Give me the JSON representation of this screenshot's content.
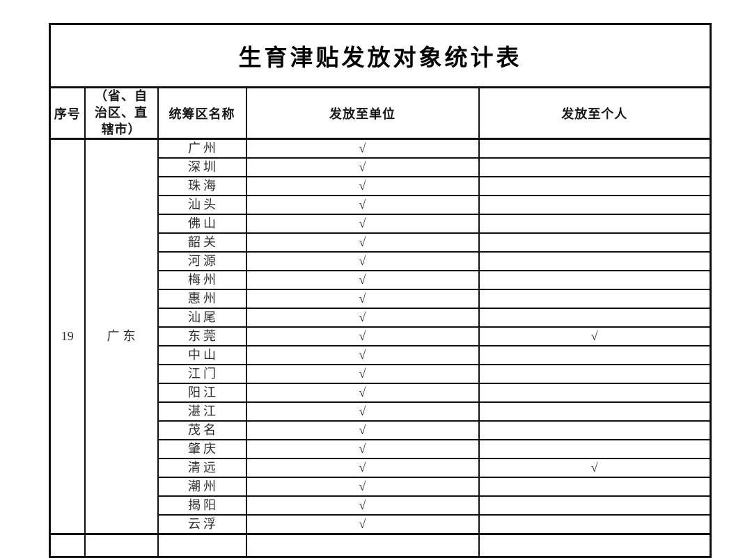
{
  "page": {
    "background_color": "#ffffff",
    "border_color": "#101010"
  },
  "table": {
    "title": "生育津贴发放对象统计表",
    "check_glyph": "√",
    "columns": {
      "serial": "序号",
      "province": "（省、自\n治区、直\n辖市）",
      "region": "统筹区名称",
      "to_unit": "发放至单位",
      "to_person": "发放至个人"
    },
    "group": {
      "serial": "19",
      "province": "广东",
      "rows": [
        {
          "city": "广州",
          "unit": true,
          "person": false
        },
        {
          "city": "深圳",
          "unit": true,
          "person": false
        },
        {
          "city": "珠海",
          "unit": true,
          "person": false
        },
        {
          "city": "汕头",
          "unit": true,
          "person": false
        },
        {
          "city": "佛山",
          "unit": true,
          "person": false
        },
        {
          "city": "韶关",
          "unit": true,
          "person": false
        },
        {
          "city": "河源",
          "unit": true,
          "person": false
        },
        {
          "city": "梅州",
          "unit": true,
          "person": false
        },
        {
          "city": "惠州",
          "unit": true,
          "person": false
        },
        {
          "city": "汕尾",
          "unit": true,
          "person": false
        },
        {
          "city": "东莞",
          "unit": true,
          "person": true
        },
        {
          "city": "中山",
          "unit": true,
          "person": false
        },
        {
          "city": "江门",
          "unit": true,
          "person": false
        },
        {
          "city": "阳江",
          "unit": true,
          "person": false
        },
        {
          "city": "湛江",
          "unit": true,
          "person": false
        },
        {
          "city": "茂名",
          "unit": true,
          "person": false
        },
        {
          "city": "肇庆",
          "unit": true,
          "person": false
        },
        {
          "city": "清远",
          "unit": true,
          "person": true
        },
        {
          "city": "潮州",
          "unit": true,
          "person": false
        },
        {
          "city": "揭阳",
          "unit": true,
          "person": false
        },
        {
          "city": "云浮",
          "unit": true,
          "person": false
        }
      ]
    }
  }
}
